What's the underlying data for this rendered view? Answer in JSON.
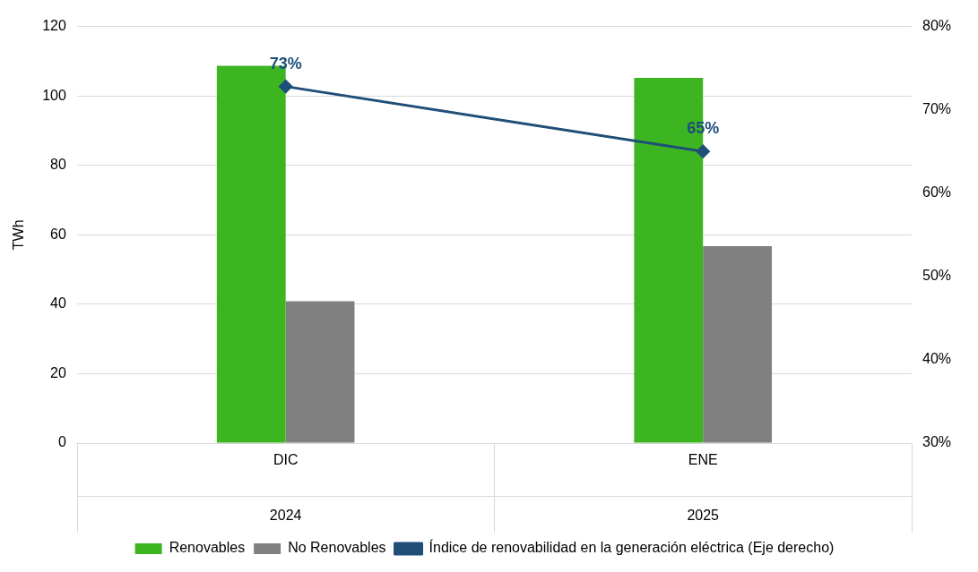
{
  "chart_data": {
    "type": "bar",
    "ylabel": "TWh",
    "categories": [
      "DIC",
      "ENE"
    ],
    "series": [
      {
        "name": "Renovables",
        "color": "#3cb521",
        "values": [
          108.7,
          105.2
        ]
      },
      {
        "name": "No Renovables",
        "color": "#808080",
        "values": [
          40.9,
          56.7
        ]
      },
      {
        "name": "Índice de renovabilidad en la generación eléctrica (Eje derecho)",
        "type": "line",
        "axis": "y2",
        "color": "#1f4e79",
        "marker": "diamond",
        "values": [
          72.8,
          65.0
        ],
        "value_labels": [
          "73%",
          "65%"
        ]
      }
    ],
    "ylim": [
      0,
      120
    ],
    "yticks": [
      0,
      20,
      40,
      60,
      80,
      100,
      120
    ],
    "y2lim": [
      30,
      80
    ],
    "y2ticks": [
      {
        "value": 30,
        "label": "30%"
      },
      {
        "value": 40,
        "label": "40%"
      },
      {
        "value": 50,
        "label": "50%"
      },
      {
        "value": 60,
        "label": "60%"
      },
      {
        "value": 70,
        "label": "70%"
      },
      {
        "value": 80,
        "label": "80%"
      }
    ],
    "annotations": [
      "2024",
      "2025"
    ],
    "grid": "y",
    "legend": "bottom"
  }
}
